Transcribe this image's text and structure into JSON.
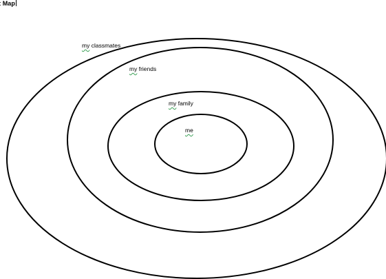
{
  "document": {
    "title": "t Map"
  },
  "diagram": {
    "rings": [
      {
        "label_first": "my",
        "label_rest": " classmates"
      },
      {
        "label_first": "my",
        "label_rest": " friends"
      },
      {
        "label_first": "my",
        "label_rest": " family"
      },
      {
        "label_first": "me",
        "label_rest": ""
      }
    ],
    "stroke_color": "#000000",
    "spellcheck_underline_color": "#3aa055"
  }
}
